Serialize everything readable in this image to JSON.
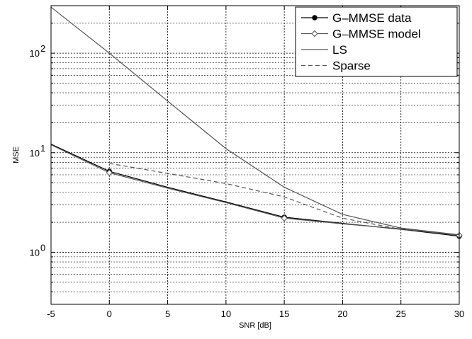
{
  "chart_data": {
    "type": "line",
    "xlabel": "SNR [dB]",
    "ylabel": "MSE",
    "xlim": [
      -5,
      30
    ],
    "ylim": [
      0.3,
      300
    ],
    "yscale": "log",
    "grid": true,
    "legend_position": "top-right",
    "x_ticks": [
      -5,
      0,
      5,
      10,
      15,
      20,
      25,
      30
    ],
    "y_ticks": [
      1,
      10,
      100
    ],
    "y_tick_labels": [
      {
        "base": "10",
        "exp": "0"
      },
      {
        "base": "10",
        "exp": "1"
      },
      {
        "base": "10",
        "exp": "2"
      }
    ],
    "series": [
      {
        "name": "G–MMSE data",
        "style": "solid",
        "marker": "dot",
        "color": "#000000",
        "x": [
          -5,
          0,
          5,
          10,
          15,
          20,
          25,
          30
        ],
        "y": [
          12.2,
          6.5,
          4.5,
          3.2,
          2.25,
          1.95,
          1.7,
          1.45
        ],
        "marker_x": [
          0,
          15,
          30
        ],
        "marker_y": [
          6.5,
          2.25,
          1.45
        ]
      },
      {
        "name": "G–MMSE model",
        "style": "solid",
        "marker": "diamond",
        "color": "#555555",
        "x": [
          -5,
          0,
          5,
          10,
          15,
          20,
          25,
          30
        ],
        "y": [
          12.0,
          6.3,
          4.4,
          3.15,
          2.2,
          1.93,
          1.72,
          1.48
        ],
        "marker_x": [
          0,
          15,
          30
        ],
        "marker_y": [
          6.3,
          2.2,
          1.48
        ]
      },
      {
        "name": "LS",
        "style": "solid",
        "marker": "none",
        "color": "#555555",
        "x": [
          -5,
          0,
          5,
          10,
          15,
          20,
          25,
          30
        ],
        "y": [
          290,
          100,
          33,
          11,
          4.5,
          2.4,
          1.75,
          1.5
        ],
        "marker_x": [],
        "marker_y": []
      },
      {
        "name": "Sparse",
        "style": "dashed",
        "marker": "none",
        "color": "#555555",
        "x": [
          0,
          5,
          10,
          15,
          20,
          25,
          30
        ],
        "y": [
          7.8,
          6.2,
          4.9,
          3.6,
          2.2,
          1.7,
          1.5
        ],
        "marker_x": [],
        "marker_y": []
      }
    ]
  }
}
